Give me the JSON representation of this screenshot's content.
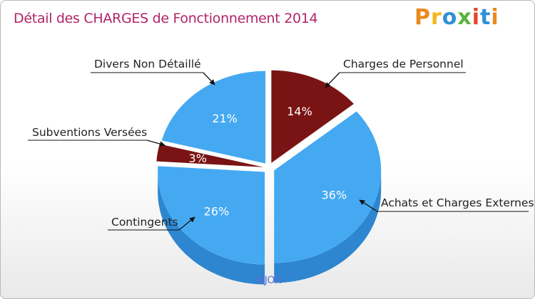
{
  "header": {
    "title": "Détail des CHARGES de Fonctionnement 2014",
    "logo_text": "Proxiti"
  },
  "footer": {
    "commune": "NIJON"
  },
  "colors": {
    "title": "#b0246a",
    "blue_top": "#45a9f2",
    "blue_side": "#2d86cf",
    "red_top": "#7a1414",
    "red_side": "#5a0a0a",
    "footer": "#5a6fd6"
  },
  "logo_colors": [
    "#e98a1f",
    "#f2b51c",
    "#2f8fd8",
    "#5ab43c",
    "#e2462f",
    "#2f8fd8",
    "#e98a1f"
  ],
  "chart_data": {
    "type": "pie",
    "style": "3d-exploded",
    "title": "Détail des CHARGES de Fonctionnement 2014",
    "slices": [
      {
        "label": "Charges de Personnel",
        "value": 14,
        "percent_label": "14%",
        "color": "#7a1414"
      },
      {
        "label": "Achats et Charges Externes",
        "value": 36,
        "percent_label": "36%",
        "color": "#45a9f2"
      },
      {
        "label": "Contingents",
        "value": 26,
        "percent_label": "26%",
        "color": "#45a9f2"
      },
      {
        "label": "Subventions Versées",
        "value": 3,
        "percent_label": "3%",
        "color": "#7a1414"
      },
      {
        "label": "Divers Non Détaillé",
        "value": 21,
        "percent_label": "21%",
        "color": "#45a9f2"
      }
    ]
  }
}
